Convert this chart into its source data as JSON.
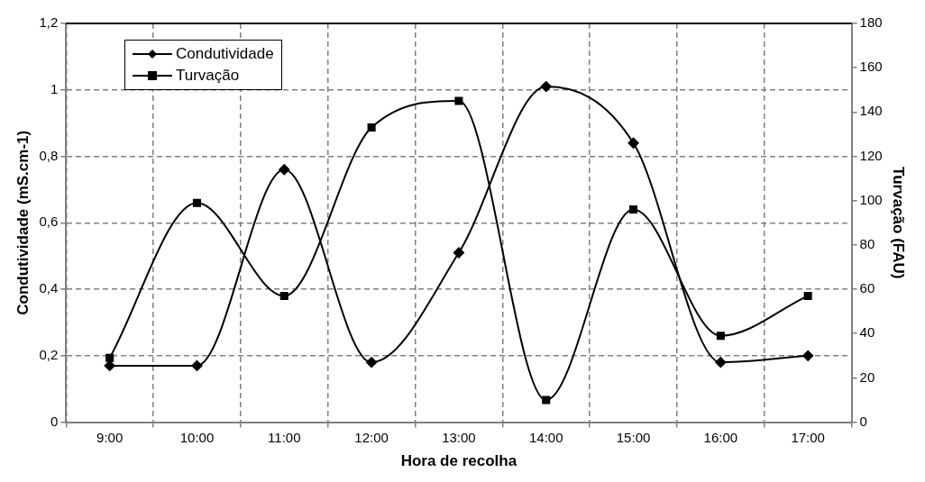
{
  "chart_data": {
    "type": "line",
    "xlabel": "Hora de recolha",
    "ylabel": "Condutividade (mS.cm-1)",
    "y2label": "Turvação (FAU)",
    "categories": [
      "9:00",
      "10:00",
      "11:00",
      "12:00",
      "13:00",
      "14:00",
      "15:00",
      "16:00",
      "17:00"
    ],
    "series": [
      {
        "name": "Condutividade",
        "color": "#000000",
        "marker": "diamond",
        "values": [
          0.17,
          0.17,
          0.76,
          0.18,
          0.51,
          1.01,
          0.84,
          0.18,
          0.2
        ]
      },
      {
        "name": "Turvação",
        "color": "#000000",
        "marker": "square",
        "axis": "y2",
        "values": [
          29,
          99,
          57,
          133,
          145,
          10,
          96,
          39,
          57
        ]
      }
    ],
    "ylim": [
      0,
      1.2
    ],
    "yticks": [
      0,
      {
        "value": 0.2,
        "label": "0,2"
      },
      {
        "value": 0.4,
        "label": "0,4"
      },
      {
        "value": 0.6,
        "label": "0,6"
      },
      {
        "value": 0.8,
        "label": "0,8"
      },
      1,
      {
        "value": 1.2,
        "label": "1,2"
      }
    ],
    "y2lim": [
      0,
      180
    ],
    "y2ticks": [
      0,
      20,
      40,
      60,
      80,
      100,
      120,
      140,
      160,
      180
    ],
    "grid": true,
    "legend": "top left",
    "line_style": "solid"
  }
}
